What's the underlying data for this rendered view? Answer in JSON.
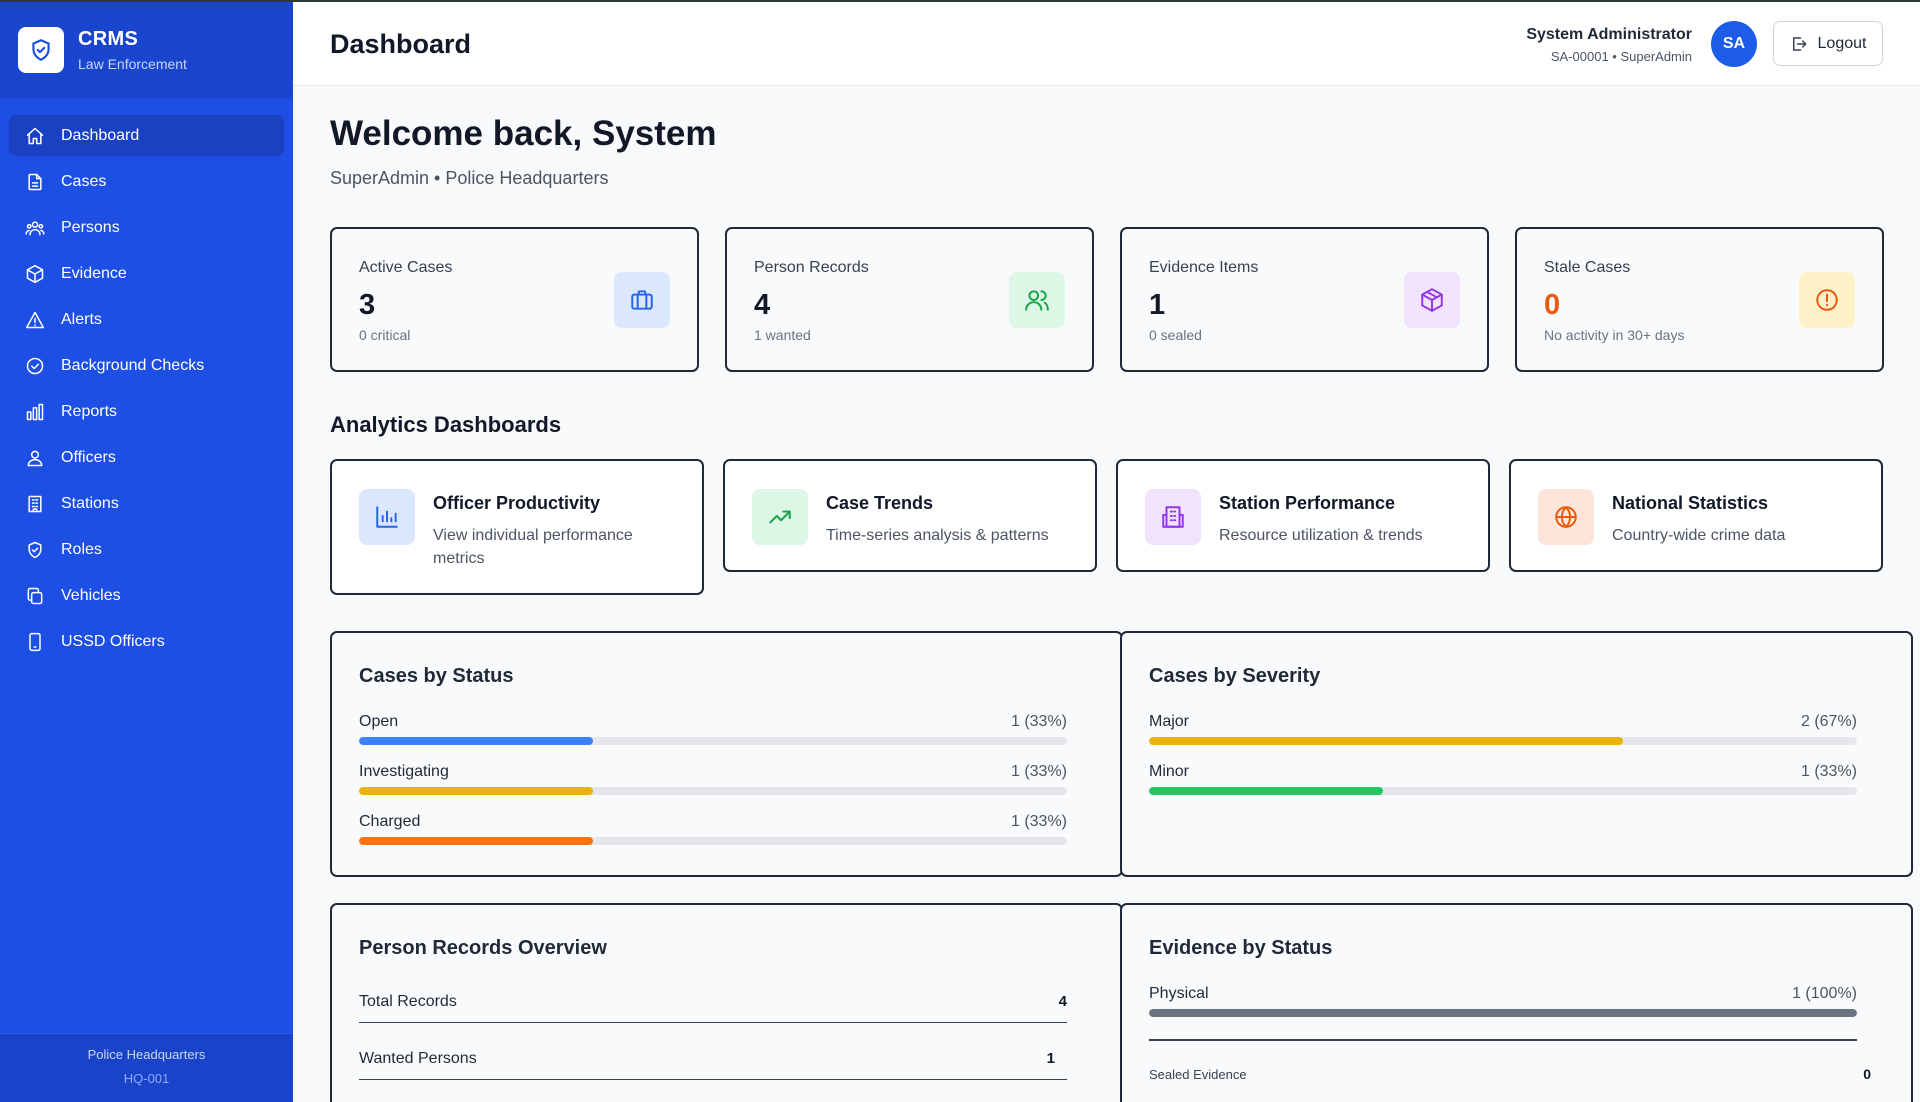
{
  "brand": {
    "title": "CRMS",
    "subtitle": "Law Enforcement",
    "logo_icon": "shield-check-icon"
  },
  "sidebar": {
    "items": [
      {
        "label": "Dashboard",
        "icon": "home-icon",
        "active": true
      },
      {
        "label": "Cases",
        "icon": "file-icon"
      },
      {
        "label": "Persons",
        "icon": "users-icon"
      },
      {
        "label": "Evidence",
        "icon": "box-icon"
      },
      {
        "label": "Alerts",
        "icon": "warning-icon"
      },
      {
        "label": "Background Checks",
        "icon": "check-circle-icon"
      },
      {
        "label": "Reports",
        "icon": "bar-chart-icon"
      },
      {
        "label": "Officers",
        "icon": "officer-icon"
      },
      {
        "label": "Stations",
        "icon": "building-icon"
      },
      {
        "label": "Roles",
        "icon": "shield-icon"
      },
      {
        "label": "Vehicles",
        "icon": "copy-icon"
      },
      {
        "label": "USSD Officers",
        "icon": "phone-icon"
      }
    ],
    "footer": {
      "station": "Police Headquarters",
      "code": "HQ-001"
    }
  },
  "header": {
    "title": "Dashboard",
    "user_name": "System Administrator",
    "user_meta": "SA-00001 • SuperAdmin",
    "avatar_initials": "SA",
    "logout_label": "Logout"
  },
  "welcome": {
    "title": "Welcome back, System",
    "subtitle": "SuperAdmin • Police Headquarters"
  },
  "stats": [
    {
      "label": "Active Cases",
      "value": "3",
      "note": "0 critical",
      "icon": "briefcase-icon",
      "color": "#2563eb",
      "bg": "#dbe7fd"
    },
    {
      "label": "Person Records",
      "value": "4",
      "note": "1 wanted",
      "icon": "users-icon",
      "color": "#16a34a",
      "bg": "#dcf7e6"
    },
    {
      "label": "Evidence Items",
      "value": "1",
      "note": "0 sealed",
      "icon": "box-icon",
      "color": "#9333ea",
      "bg": "#f1e3fd"
    },
    {
      "label": "Stale Cases",
      "value": "0",
      "note": "No activity in 30+ days",
      "icon": "alert-circle-icon",
      "color": "#ea580c",
      "bg": "#fdf1c9"
    }
  ],
  "analytics": {
    "title": "Analytics Dashboards",
    "cards": [
      {
        "title": "Officer Productivity",
        "desc": "View individual performance metrics",
        "icon": "bar-chart-icon",
        "color": "#2563eb",
        "bg": "#dbe7fd"
      },
      {
        "title": "Case Trends",
        "desc": "Time-series analysis & patterns",
        "icon": "trending-up-icon",
        "color": "#16a34a",
        "bg": "#dcf7e6"
      },
      {
        "title": "Station Performance",
        "desc": "Resource utilization & trends",
        "icon": "building-icon",
        "color": "#9333ea",
        "bg": "#f1e3fd"
      },
      {
        "title": "National Statistics",
        "desc": "Country-wide crime data",
        "icon": "globe-icon",
        "color": "#ea580c",
        "bg": "#fde6d9"
      }
    ]
  },
  "cases_by_status": {
    "title": "Cases by Status",
    "rows": [
      {
        "label": "Open",
        "value": "1 (33%)",
        "fraction": 0.33,
        "color": "#3b82f6"
      },
      {
        "label": "Investigating",
        "value": "1 (33%)",
        "fraction": 0.33,
        "color": "#eab308"
      },
      {
        "label": "Charged",
        "value": "1 (33%)",
        "fraction": 0.33,
        "color": "#f97316"
      }
    ]
  },
  "cases_by_severity": {
    "title": "Cases by Severity",
    "rows": [
      {
        "label": "Major",
        "value": "2 (67%)",
        "fraction": 0.67,
        "color": "#eab308"
      },
      {
        "label": "Minor",
        "value": "1 (33%)",
        "fraction": 0.33,
        "color": "#22c55e"
      }
    ]
  },
  "person_overview": {
    "title": "Person Records Overview",
    "rows": [
      {
        "label": "Total Records",
        "value": "4"
      },
      {
        "label": "Wanted Persons",
        "value": "1"
      }
    ]
  },
  "evidence_by_status": {
    "title": "Evidence by Status",
    "rows": [
      {
        "label": "Physical",
        "value": "1 (100%)",
        "fraction": 1.0,
        "color": "#6b7280"
      }
    ],
    "sealed_label": "Sealed Evidence",
    "sealed_value": "0"
  }
}
